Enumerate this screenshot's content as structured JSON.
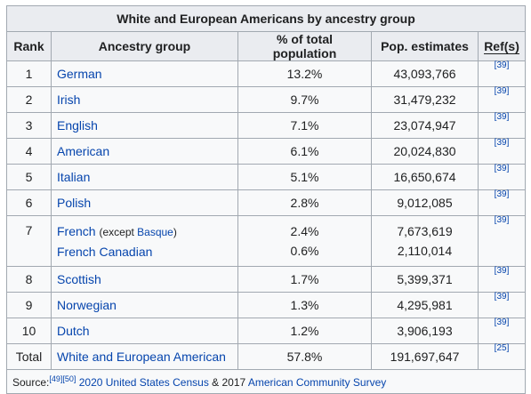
{
  "table": {
    "caption": "White and European Americans by ancestry group",
    "headers": {
      "rank": "Rank",
      "ancestry": "Ancestry group",
      "percent": "% of total population",
      "estimate": "Pop. estimates",
      "refs": "Ref(s)"
    },
    "rows": [
      {
        "rank": "1",
        "group": "German",
        "pct": "13.2%",
        "est": "43,093,766",
        "ref": "[39]"
      },
      {
        "rank": "2",
        "group": "Irish",
        "pct": "9.7%",
        "est": "31,479,232",
        "ref": "[39]"
      },
      {
        "rank": "3",
        "group": "English",
        "pct": "7.1%",
        "est": "23,074,947",
        "ref": "[39]"
      },
      {
        "rank": "4",
        "group": "American",
        "pct": "6.1%",
        "est": "20,024,830",
        "ref": "[39]"
      },
      {
        "rank": "5",
        "group": "Italian",
        "pct": "5.1%",
        "est": "16,650,674",
        "ref": "[39]"
      },
      {
        "rank": "6",
        "group": "Polish",
        "pct": "2.8%",
        "est": "9,012,085",
        "ref": "[39]"
      }
    ],
    "row7": {
      "rank": "7",
      "group1": "French",
      "group1_note_prefix": "(except ",
      "group1_note_link": "Basque",
      "group1_note_suffix": ")",
      "pct1": "2.4%",
      "est1": "7,673,619",
      "group2": "French Canadian",
      "pct2": "0.6%",
      "est2": "2,110,014",
      "ref": "[39]"
    },
    "rows_after": [
      {
        "rank": "8",
        "group": "Scottish",
        "pct": "1.7%",
        "est": "5,399,371",
        "ref": "[39]"
      },
      {
        "rank": "9",
        "group": "Norwegian",
        "pct": "1.3%",
        "est": "4,295,981",
        "ref": "[39]"
      },
      {
        "rank": "10",
        "group": "Dutch",
        "pct": "1.2%",
        "est": "3,906,193",
        "ref": "[39]"
      }
    ],
    "total": {
      "rank": "Total",
      "group": "White and European American",
      "pct": "57.8%",
      "est": "191,697,647",
      "ref": "[25]"
    },
    "source": {
      "label": "Source:",
      "refs": "[49][50]",
      "link1": "2020 United States Census",
      "between": " & 2017 ",
      "link2": "American Community Survey"
    }
  },
  "colors": {
    "link": "#0645ad",
    "header_bg": "#eaecf0",
    "cell_bg": "#f8f9fa",
    "border": "#a2a9b1"
  }
}
